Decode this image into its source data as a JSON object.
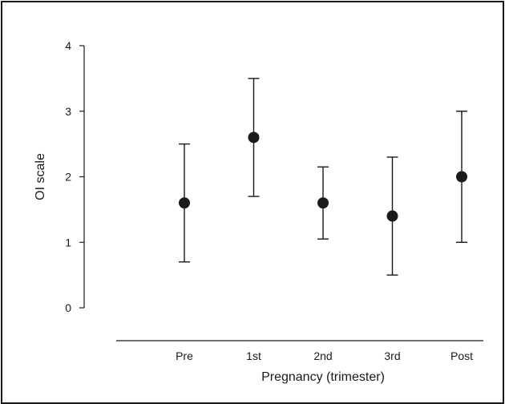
{
  "chart_data": {
    "type": "scatter",
    "title": "",
    "xlabel": "Pregnancy (trimester)",
    "ylabel": "OI scale",
    "categories": [
      "Pre",
      "1st",
      "2nd",
      "3rd",
      "Post"
    ],
    "series": [
      {
        "values": [
          1.6,
          2.6,
          1.6,
          1.4,
          2.0
        ],
        "error_low": [
          0.7,
          1.7,
          1.05,
          0.5,
          1.0
        ],
        "error_high": [
          2.5,
          3.5,
          2.15,
          2.3,
          3.0
        ]
      }
    ],
    "ylim": [
      0,
      4
    ],
    "yticks": [
      0,
      1,
      2,
      3,
      4
    ],
    "grid": false,
    "legend": "none",
    "colors": {
      "marker": "#1a1a1a",
      "axis": "#1a1a1a"
    }
  }
}
